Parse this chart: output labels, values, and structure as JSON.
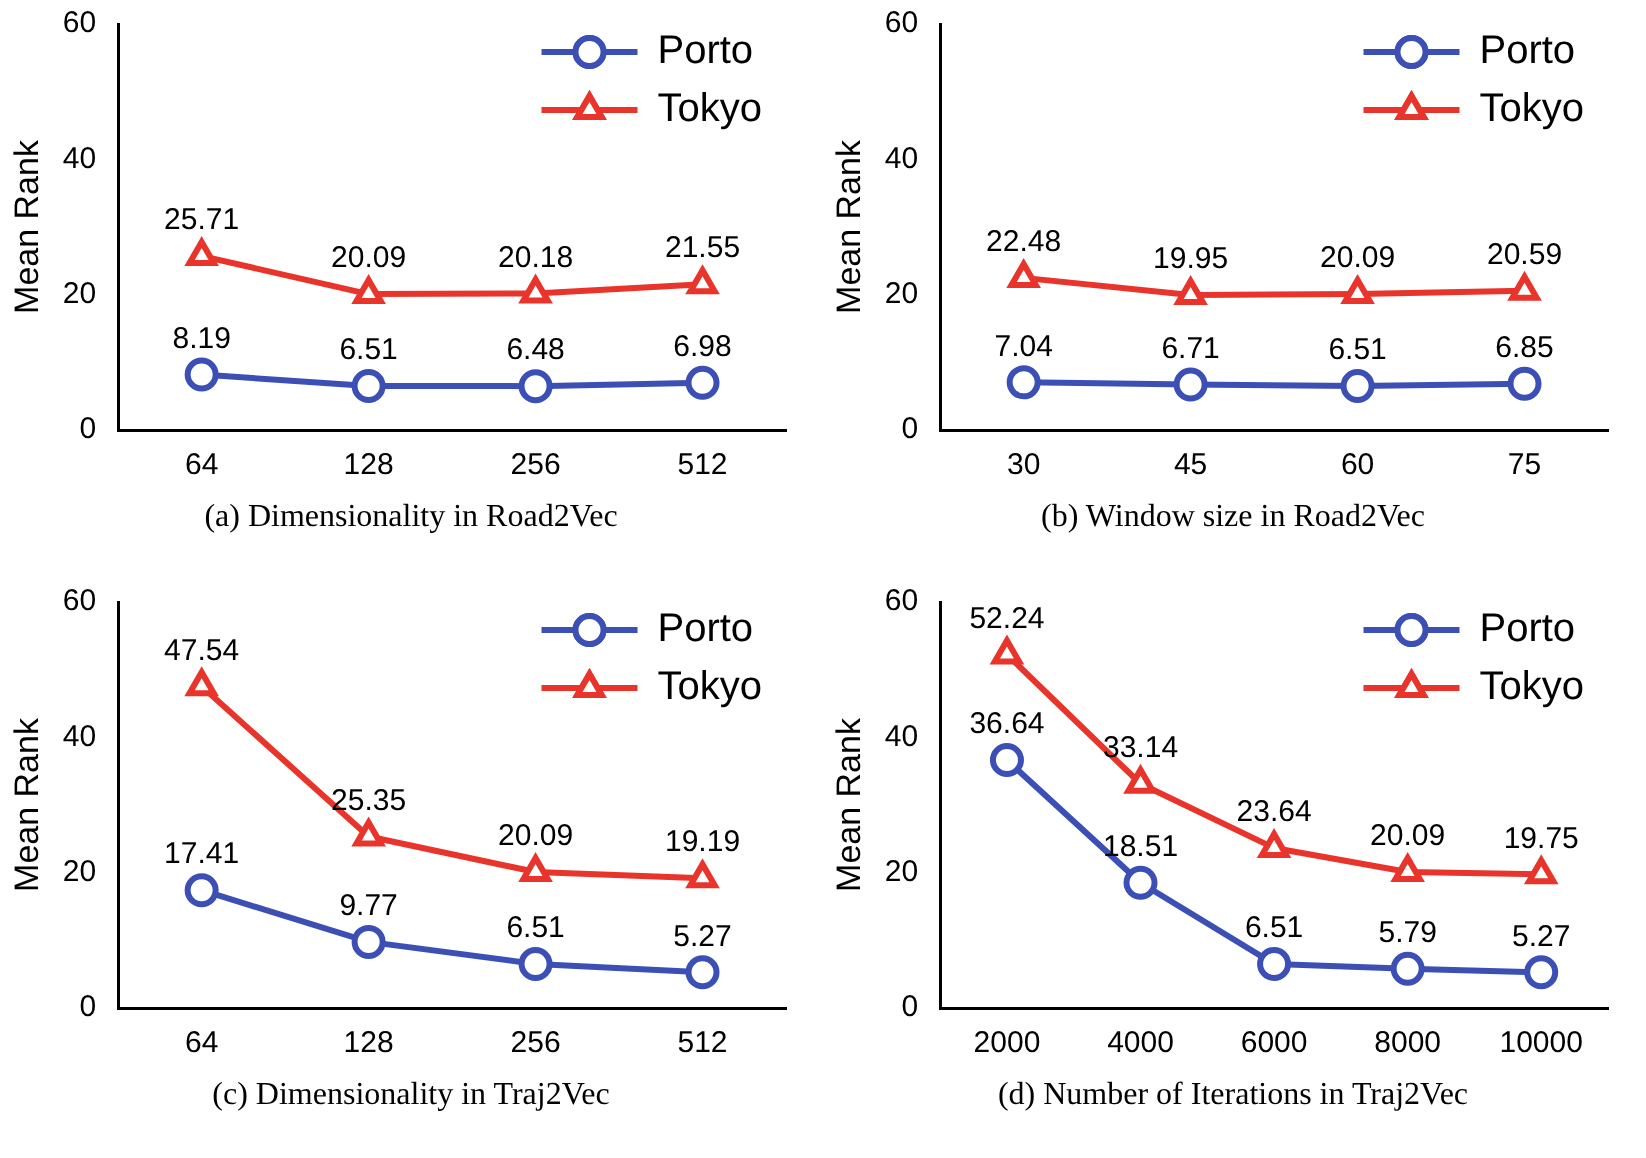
{
  "chart_data": [
    {
      "type": "line",
      "categories": [
        "64",
        "128",
        "256",
        "512"
      ],
      "ylabel": "Mean Rank",
      "ylim": [
        0,
        60
      ],
      "yticks": [
        0,
        20,
        40,
        60
      ],
      "grid": false,
      "legend": "top right",
      "data_labels": true,
      "annotations": [
        "(a)  Dimensionality in Road2Vec"
      ],
      "series": [
        {
          "name": "Porto",
          "color": "#3b4fb5",
          "marker": "circle",
          "values": [
            8.19,
            6.51,
            6.48,
            6.98
          ]
        },
        {
          "name": "Tokyo",
          "color": "#e8342a",
          "marker": "triangle",
          "values": [
            25.71,
            20.09,
            20.18,
            21.55
          ]
        }
      ]
    },
    {
      "type": "line",
      "categories": [
        "30",
        "45",
        "60",
        "75"
      ],
      "ylabel": "Mean Rank",
      "ylim": [
        0,
        60
      ],
      "yticks": [
        0,
        20,
        40,
        60
      ],
      "grid": false,
      "legend": "top right",
      "data_labels": true,
      "annotations": [
        "(b)  Window size in Road2Vec"
      ],
      "series": [
        {
          "name": "Porto",
          "color": "#3b4fb5",
          "marker": "circle",
          "values": [
            7.04,
            6.71,
            6.51,
            6.85
          ]
        },
        {
          "name": "Tokyo",
          "color": "#e8342a",
          "marker": "triangle",
          "values": [
            22.48,
            19.95,
            20.09,
            20.59
          ]
        }
      ]
    },
    {
      "type": "line",
      "categories": [
        "64",
        "128",
        "256",
        "512"
      ],
      "ylabel": "Mean Rank",
      "ylim": [
        0,
        60
      ],
      "yticks": [
        0,
        20,
        40,
        60
      ],
      "grid": false,
      "legend": "top right",
      "data_labels": true,
      "annotations": [
        "(c)  Dimensionality in Traj2Vec"
      ],
      "series": [
        {
          "name": "Porto",
          "color": "#3b4fb5",
          "marker": "circle",
          "values": [
            17.41,
            9.77,
            6.51,
            5.27
          ]
        },
        {
          "name": "Tokyo",
          "color": "#e8342a",
          "marker": "triangle",
          "values": [
            47.54,
            25.35,
            20.09,
            19.19
          ]
        }
      ]
    },
    {
      "type": "line",
      "categories": [
        "2000",
        "4000",
        "6000",
        "8000",
        "10000"
      ],
      "ylabel": "Mean Rank",
      "ylim": [
        0,
        60
      ],
      "yticks": [
        0,
        20,
        40,
        60
      ],
      "grid": false,
      "legend": "top right",
      "data_labels": true,
      "annotations": [
        "(d)  Number of Iterations in Traj2Vec"
      ],
      "series": [
        {
          "name": "Porto",
          "color": "#3b4fb5",
          "marker": "circle",
          "values": [
            36.64,
            18.51,
            6.51,
            5.79,
            5.27
          ]
        },
        {
          "name": "Tokyo",
          "color": "#e8342a",
          "marker": "triangle",
          "values": [
            52.24,
            33.14,
            23.64,
            20.09,
            19.75
          ]
        }
      ]
    }
  ]
}
